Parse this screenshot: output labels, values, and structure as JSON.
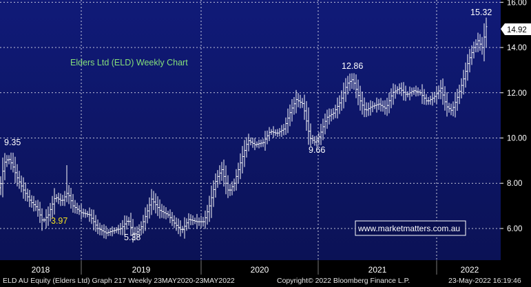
{
  "chart_data": {
    "type": "bar",
    "subtype": "ohlc-weekly",
    "title": "Elders Ltd (ELD) Weekly Chart",
    "watermark": "www.marketmatters.com.au",
    "last_price_badge": "14.92",
    "xlabel": "",
    "ylabel": "",
    "ylim": [
      4.6,
      16.1
    ],
    "yticks": [
      6,
      8,
      10,
      12,
      14,
      16
    ],
    "ytick_labels": [
      "6.00",
      "8.00",
      "10.00",
      "12.00",
      "14.00",
      "16.00"
    ],
    "x_periods": [
      "2018",
      "2019",
      "2020",
      "2021",
      "2022"
    ],
    "grid": true,
    "annotations": [
      {
        "text": "9.35",
        "x": "2017-12",
        "y": 9.35
      },
      {
        "text": "3.97",
        "x": "2018-06",
        "y": 5.9
      },
      {
        "text": "5.38",
        "x": "2019-01",
        "y": 5.38
      },
      {
        "text": "9.66",
        "x": "2020-07",
        "y": 9.66
      },
      {
        "text": "12.86",
        "x": "2020-12",
        "y": 12.86
      },
      {
        "text": "15.32",
        "x": "2022-05",
        "y": 15.32
      }
    ],
    "weekly_close_series": [
      [
        0,
        7.8
      ],
      [
        6,
        8.9
      ],
      [
        12,
        9.1
      ],
      [
        18,
        8.8
      ],
      [
        24,
        8.3
      ],
      [
        34,
        7.7
      ],
      [
        44,
        7.2
      ],
      [
        54,
        6.9
      ],
      [
        62,
        6.3
      ],
      [
        70,
        6.6
      ],
      [
        80,
        7.4
      ],
      [
        90,
        7.2
      ],
      [
        98,
        7.6
      ],
      [
        106,
        7.0
      ],
      [
        118,
        6.7
      ],
      [
        130,
        6.6
      ],
      [
        142,
        6.0
      ],
      [
        154,
        5.8
      ],
      [
        164,
        5.9
      ],
      [
        176,
        6.0
      ],
      [
        186,
        6.4
      ],
      [
        194,
        5.7
      ],
      [
        204,
        6.0
      ],
      [
        212,
        6.6
      ],
      [
        220,
        7.3
      ],
      [
        232,
        6.8
      ],
      [
        244,
        6.6
      ],
      [
        254,
        6.2
      ],
      [
        264,
        5.9
      ],
      [
        274,
        6.4
      ],
      [
        286,
        6.3
      ],
      [
        296,
        6.3
      ],
      [
        304,
        7.0
      ],
      [
        314,
        8.2
      ],
      [
        322,
        8.6
      ],
      [
        332,
        7.6
      ],
      [
        340,
        8.0
      ],
      [
        350,
        9.0
      ],
      [
        360,
        9.9
      ],
      [
        370,
        9.7
      ],
      [
        382,
        9.8
      ],
      [
        392,
        10.3
      ],
      [
        402,
        10.2
      ],
      [
        412,
        10.4
      ],
      [
        422,
        11.2
      ],
      [
        430,
        11.7
      ],
      [
        440,
        11.5
      ],
      [
        450,
        10.0
      ],
      [
        458,
        9.8
      ],
      [
        464,
        10.1
      ],
      [
        474,
        10.9
      ],
      [
        484,
        11.1
      ],
      [
        494,
        11.6
      ],
      [
        504,
        12.4
      ],
      [
        512,
        12.6
      ],
      [
        522,
        11.7
      ],
      [
        530,
        11.2
      ],
      [
        540,
        11.4
      ],
      [
        550,
        11.5
      ],
      [
        560,
        11.3
      ],
      [
        570,
        12.0
      ],
      [
        580,
        12.2
      ],
      [
        590,
        11.9
      ],
      [
        600,
        12.1
      ],
      [
        610,
        12.0
      ],
      [
        620,
        11.6
      ],
      [
        630,
        11.8
      ],
      [
        640,
        12.2
      ],
      [
        648,
        11.4
      ],
      [
        656,
        11.2
      ],
      [
        664,
        11.8
      ],
      [
        672,
        12.5
      ],
      [
        680,
        13.4
      ],
      [
        688,
        14.0
      ],
      [
        694,
        14.3
      ],
      [
        700,
        14.0
      ],
      [
        706,
        14.92
      ]
    ]
  },
  "footer": {
    "left": "ELD AU Equity (Elders Ltd) Graph 217  Weekly 23MAY2020-23MAY2022",
    "center": "Copyright© 2022 Bloomberg Finance L.P.",
    "right": "23-May-2022 16:19:46"
  }
}
